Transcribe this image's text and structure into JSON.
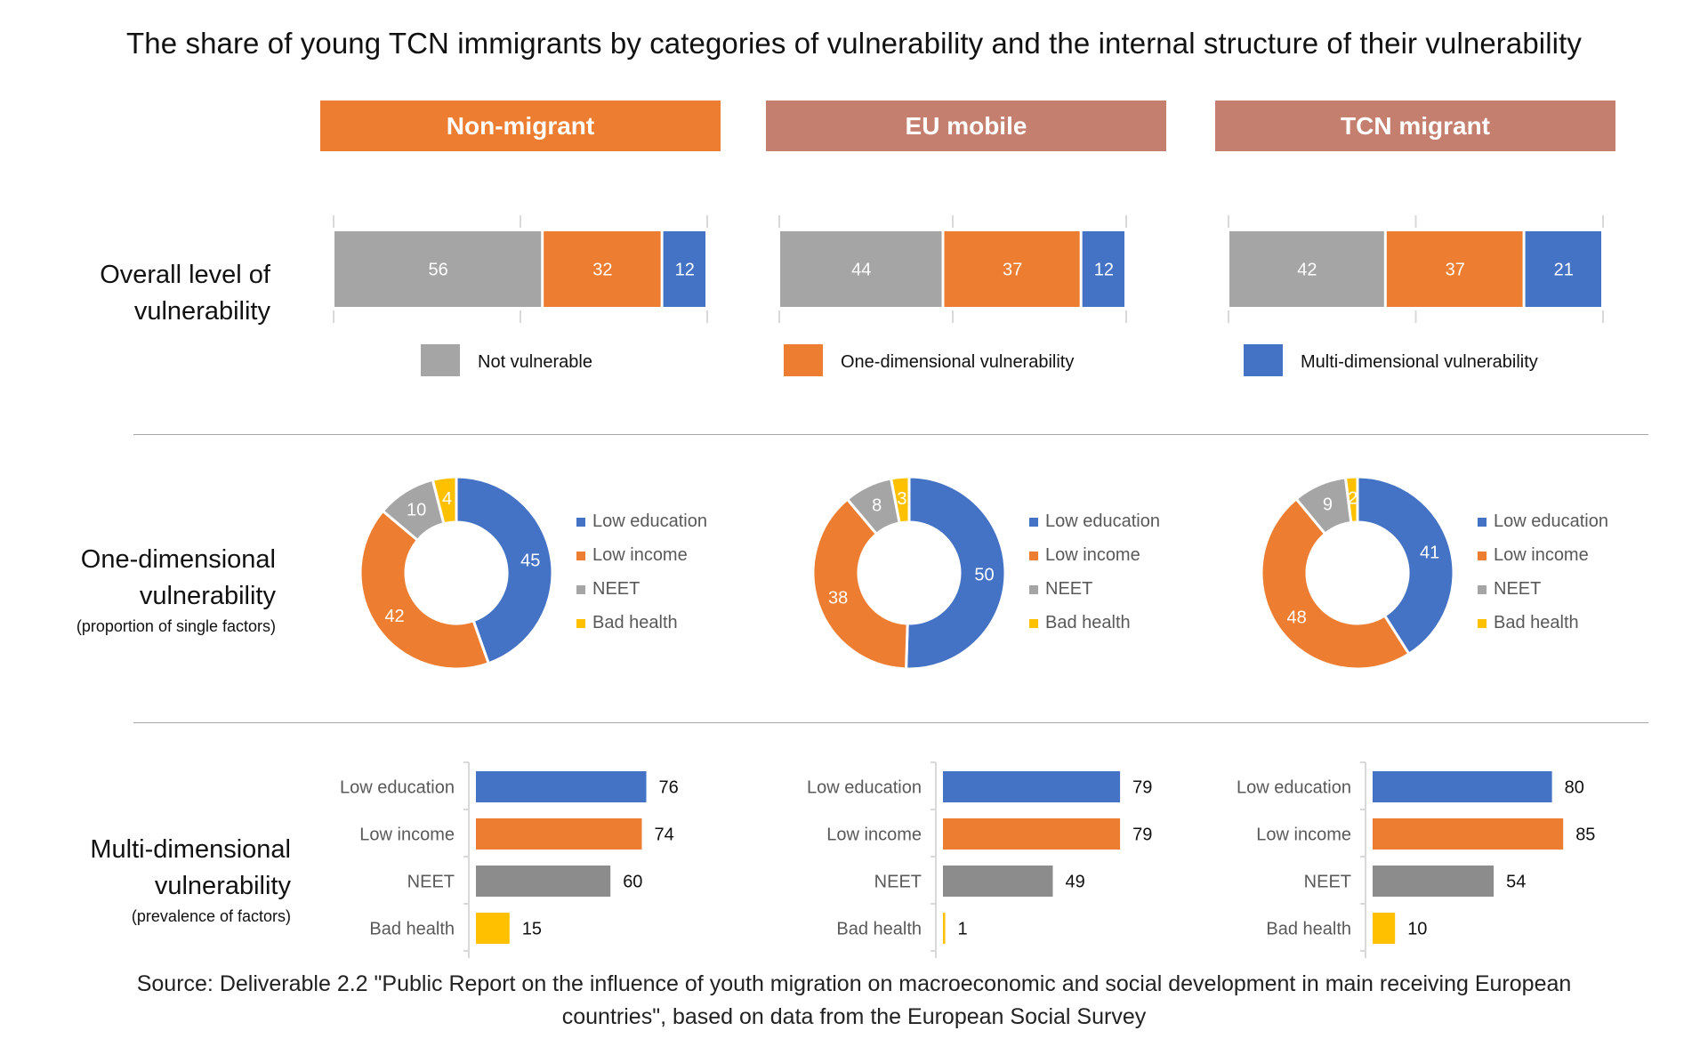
{
  "title": "The share of young TCN immigrants by categories of vulnerability and the internal structure of their vulnerability",
  "groups": [
    {
      "label": "Non-migrant",
      "color": "#ED7D31"
    },
    {
      "label": "EU mobile",
      "color": "#C47F6E"
    },
    {
      "label": "TCN migrant",
      "color": "#C47F6E"
    }
  ],
  "row_labels": {
    "overall": [
      "Overall level of",
      "vulnerability"
    ],
    "one_dim": [
      "One-dimensional",
      "vulnerability",
      "(proportion of single factors)"
    ],
    "multi_dim": [
      "Multi-dimensional",
      "vulnerability",
      "(prevalence of factors)"
    ]
  },
  "colors": {
    "gray": "#A5A5A5",
    "orange": "#ED7D31",
    "blue": "#4472C4",
    "yellow": "#FFC000",
    "dark_gray": "#8C8C8C"
  },
  "footer": {
    "line1": "Source: Deliverable 2.2 \"Public Report on the influence of youth migration on macroeconomic and social development in main receiving European",
    "line2": "countries\", based on data from the European Social Survey"
  },
  "chart_data": [
    {
      "type": "bar",
      "orientation": "horizontal-stacked",
      "title": "Overall level of vulnerability",
      "categories": [
        "Non-migrant",
        "EU mobile",
        "TCN migrant"
      ],
      "series": [
        {
          "name": "Not vulnerable",
          "color": "#A5A5A5",
          "values": [
            56,
            44,
            42
          ]
        },
        {
          "name": "One-dimensional vulnerability",
          "color": "#ED7D31",
          "values": [
            32,
            37,
            37
          ]
        },
        {
          "name": "Multi-dimensional vulnerability",
          "color": "#4472C4",
          "values": [
            12,
            12,
            21
          ]
        }
      ],
      "xlim": [
        0,
        100
      ],
      "legend": "bottom"
    },
    {
      "type": "pie",
      "variant": "donut",
      "title": "One-dimensional vulnerability (proportion of single factors)",
      "labels": [
        "Low education",
        "Low income",
        "NEET",
        "Bad health"
      ],
      "colors": [
        "#4472C4",
        "#ED7D31",
        "#A5A5A5",
        "#FFC000"
      ],
      "groups": [
        {
          "name": "Non-migrant",
          "values": [
            45,
            42,
            10,
            4
          ]
        },
        {
          "name": "EU mobile",
          "values": [
            50,
            38,
            8,
            3
          ]
        },
        {
          "name": "TCN migrant",
          "values": [
            41,
            48,
            9,
            2
          ]
        }
      ],
      "legend": "right"
    },
    {
      "type": "bar",
      "orientation": "horizontal",
      "title": "Multi-dimensional vulnerability (prevalence of factors)",
      "categories": [
        "Low education",
        "Low income",
        "NEET",
        "Bad health"
      ],
      "colors": [
        "#4472C4",
        "#ED7D31",
        "#8C8C8C",
        "#FFC000"
      ],
      "groups": [
        {
          "name": "Non-migrant",
          "values": [
            76,
            74,
            60,
            15
          ]
        },
        {
          "name": "EU mobile",
          "values": [
            79,
            79,
            49,
            1
          ]
        },
        {
          "name": "TCN migrant",
          "values": [
            80,
            85,
            54,
            10
          ]
        }
      ],
      "xlim": [
        0,
        100
      ]
    }
  ]
}
